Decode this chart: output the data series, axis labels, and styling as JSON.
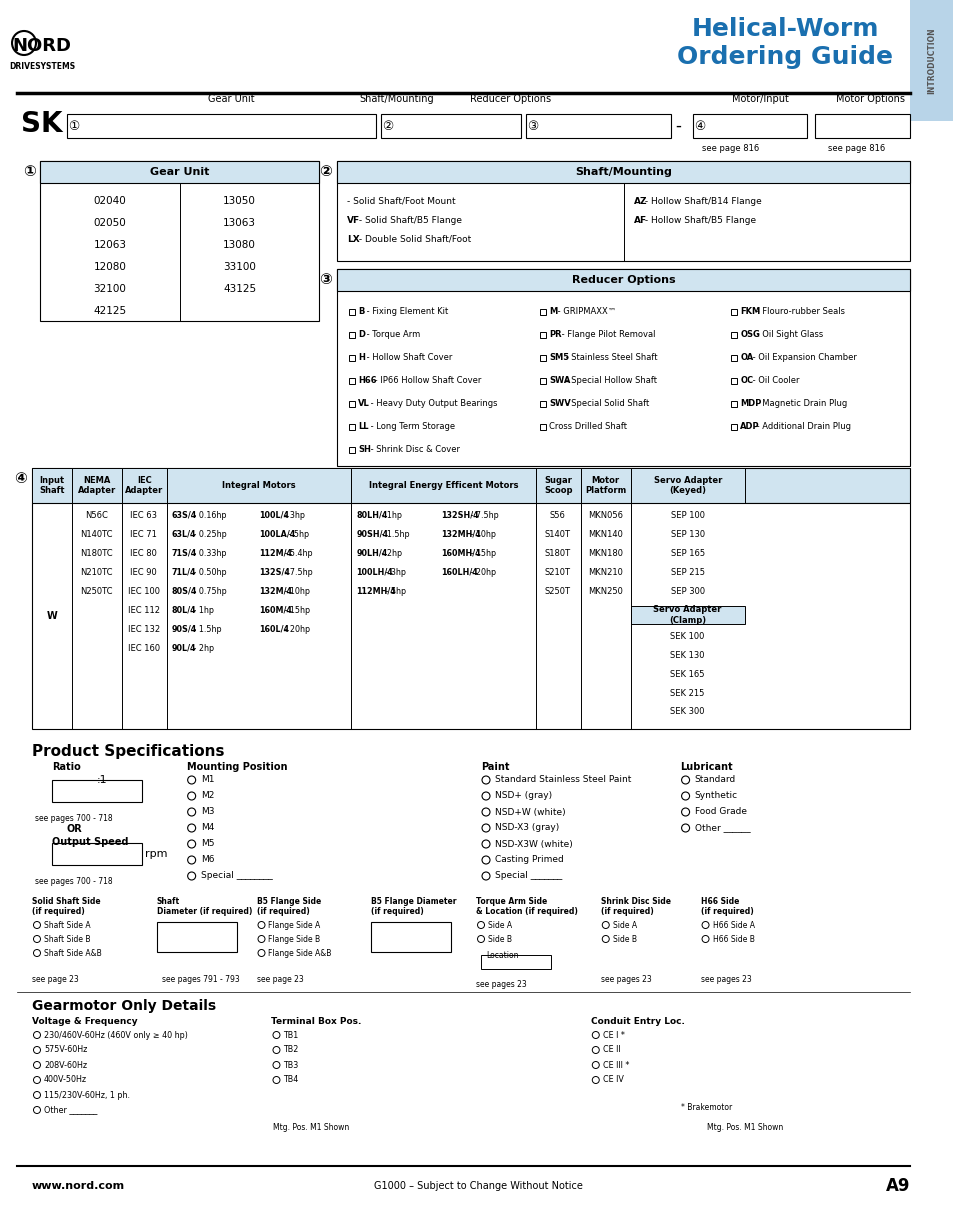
{
  "title": "Helical-Worm\nOrdering Guide",
  "title_color": "#1a6faf",
  "bg_color": "#ffffff",
  "tab_color": "#b8d4e8",
  "header_bg": "#d0e4f0",
  "section_header_bg": "#c5daea",
  "gear_unit_numbers_col1": [
    "02040",
    "02050",
    "12063",
    "12080",
    "32100",
    "42125"
  ],
  "gear_unit_numbers_col2": [
    "13050",
    "13063",
    "13080",
    "33100",
    "43125",
    ""
  ],
  "shaft_mounting_left": [
    "- Solid Shaft/Foot Mount",
    "VF - Solid Shaft/B5 Flange",
    "LX - Double Solid Shaft/Foot"
  ],
  "shaft_mounting_right": [
    "AZ - Hollow Shaft/B14 Flange",
    "AF - Hollow Shaft/B5 Flange"
  ],
  "reducer_options_col1": [
    [
      "B",
      "Fixing Element Kit"
    ],
    [
      "D",
      "Torque Arm"
    ],
    [
      "H",
      "Hollow Shaft Cover"
    ],
    [
      "H66",
      "IP66 Hollow Shaft Cover"
    ],
    [
      "VL",
      "Heavy Duty Output Bearings"
    ],
    [
      "LL",
      "Long Term Storage"
    ],
    [
      "SH",
      "Shrink Disc & Cover"
    ]
  ],
  "reducer_options_col2": [
    [
      "M",
      "GRIPMAXX™"
    ],
    [
      "PR",
      "Flange Pilot Removal"
    ],
    [
      "SM5",
      "Stainless Steel Shaft"
    ],
    [
      "SWA",
      "Special Hollow Shaft"
    ],
    [
      "SWV",
      "Special Solid Shaft"
    ],
    [
      "",
      "Cross Drilled Shaft"
    ]
  ],
  "reducer_options_col3": [
    [
      "FKM",
      "Flouro-rubber Seals"
    ],
    [
      "OSG",
      "Oil Sight Glass"
    ],
    [
      "OA",
      "Oil Expansion Chamber"
    ],
    [
      "OC",
      "Oil Cooler"
    ],
    [
      "MDP",
      "Magnetic Drain Plug"
    ],
    [
      "ADP",
      "Additional Drain Plug"
    ]
  ],
  "nema_adapters": [
    "N56C",
    "N140TC",
    "N180TC",
    "N210TC",
    "N250TC"
  ],
  "iec_adapters": [
    "IEC 63",
    "IEC 71",
    "IEC 80",
    "IEC 90",
    "IEC 100",
    "IEC 112",
    "IEC 132",
    "IEC 160"
  ],
  "integral_motors_col1": [
    "63S/4 - 0.16hp",
    "63L/4 - 0.25hp",
    "71S/4 - 0.33hp",
    "71L/4 - 0.50hp",
    "80S/4 - 0.75hp",
    "80L/4 - 1hp",
    "90S/4 - 1.5hp",
    "90L/4 - 2hp"
  ],
  "integral_motors_col2": [
    "100L/4 - 3hp",
    "100LA/4 - 5hp",
    "112M/4 - 5.4hp",
    "132S/4 - 7.5hp",
    "132M/4 - 10hp",
    "160M/4 - 15hp",
    "160L/4 - 20hp"
  ],
  "ie_motors_col1": [
    "80LH/4 - 1hp",
    "90SH/4 - 1.5hp",
    "90LH/4 - 2hp",
    "100LH/4 - 3hp",
    "112MH/4 - 5hp"
  ],
  "ie_motors_col2": [
    "132SH/4 - 7.5hp",
    "132MH/4 - 10hp",
    "160MH/4 - 15hp",
    "160LH/4 - 20hp"
  ],
  "sugar_scoop": [
    "S56",
    "S140T",
    "S180T",
    "S210T",
    "S250T"
  ],
  "motor_platform": [
    "MKN056",
    "MKN140",
    "MKN180",
    "MKN210",
    "MKN250"
  ],
  "servo_keyed": [
    "SEP 100",
    "SEP 130",
    "SEP 165",
    "SEP 215",
    "SEP 300"
  ],
  "servo_clamp": [
    "SEK 100",
    "SEK 130",
    "SEK 165",
    "SEK 215",
    "SEK 300"
  ],
  "product_spec_title": "Product Specifications",
  "ratio_label": "Ratio",
  "mounting_positions": [
    "M1",
    "M2",
    "M3",
    "M4",
    "M5",
    "M6",
    "Special ________"
  ],
  "paint_options": [
    "Standard Stainless Steel Paint",
    "NSD+ (gray)",
    "NSD+W (white)",
    "NSD-X3 (gray)",
    "NSD-X3W (white)",
    "Casting Primed",
    "Special _______"
  ],
  "lubricant_options": [
    "Standard",
    "Synthetic",
    "Food Grade",
    "Other ______"
  ],
  "gearmotor_title": "Gearmotor Only Details",
  "voltage_freq_label": "Voltage & Frequency",
  "voltage_options": [
    "230/460V-60Hz (460V only ≥ 40 hp)",
    "575V-60Hz",
    "208V-60Hz",
    "400V-50Hz",
    "115/230V-60Hz, 1 ph.",
    "Other _______"
  ],
  "terminal_box_label": "Terminal Box Pos.",
  "terminal_boxes": [
    "TB1",
    "TB2",
    "TB3",
    "TB4"
  ],
  "conduit_entry_label": "Conduit Entry Loc.",
  "conduit_entries": [
    "CE I *",
    "CE II",
    "CE III *",
    "CE IV"
  ],
  "footer_left": "www.nord.com",
  "footer_center": "G1000 – Subject to Change Without Notice",
  "footer_right": "A9",
  "solid_shaft_label": "Solid Shaft Side\n(if required)",
  "solid_shaft_options": [
    "Shaft Side A",
    "Shaft Side B",
    "Shaft Side A&B",
    "see page 23"
  ],
  "shaft_diameter_label": "Shaft\nDiameter (if required)",
  "shaft_diameter_note": "see pages 791 - 793",
  "b5_flange_label": "B5 Flange Side\n(if required)",
  "b5_flange_options": [
    "Flange Side A",
    "Flange Side B",
    "Flange Side A&B",
    "see page 23"
  ],
  "b5_flange_dia_label": "B5 Flange Diameter\n(if required)",
  "torque_arm_label": "Torque Arm Side\n& Location (if required)",
  "torque_arm_options": [
    "Side A",
    "Side B",
    "Location",
    "see pages 23"
  ],
  "shrink_disc_label": "Shrink Disc Side\n(if required)",
  "shrink_disc_options": [
    "Side A",
    "Side B",
    "see pages 23"
  ],
  "h66_side_label": "H66 Side\n(if required)",
  "h66_side_options": [
    "H66 Side A",
    "H66 Side B",
    "see pages 23"
  ]
}
